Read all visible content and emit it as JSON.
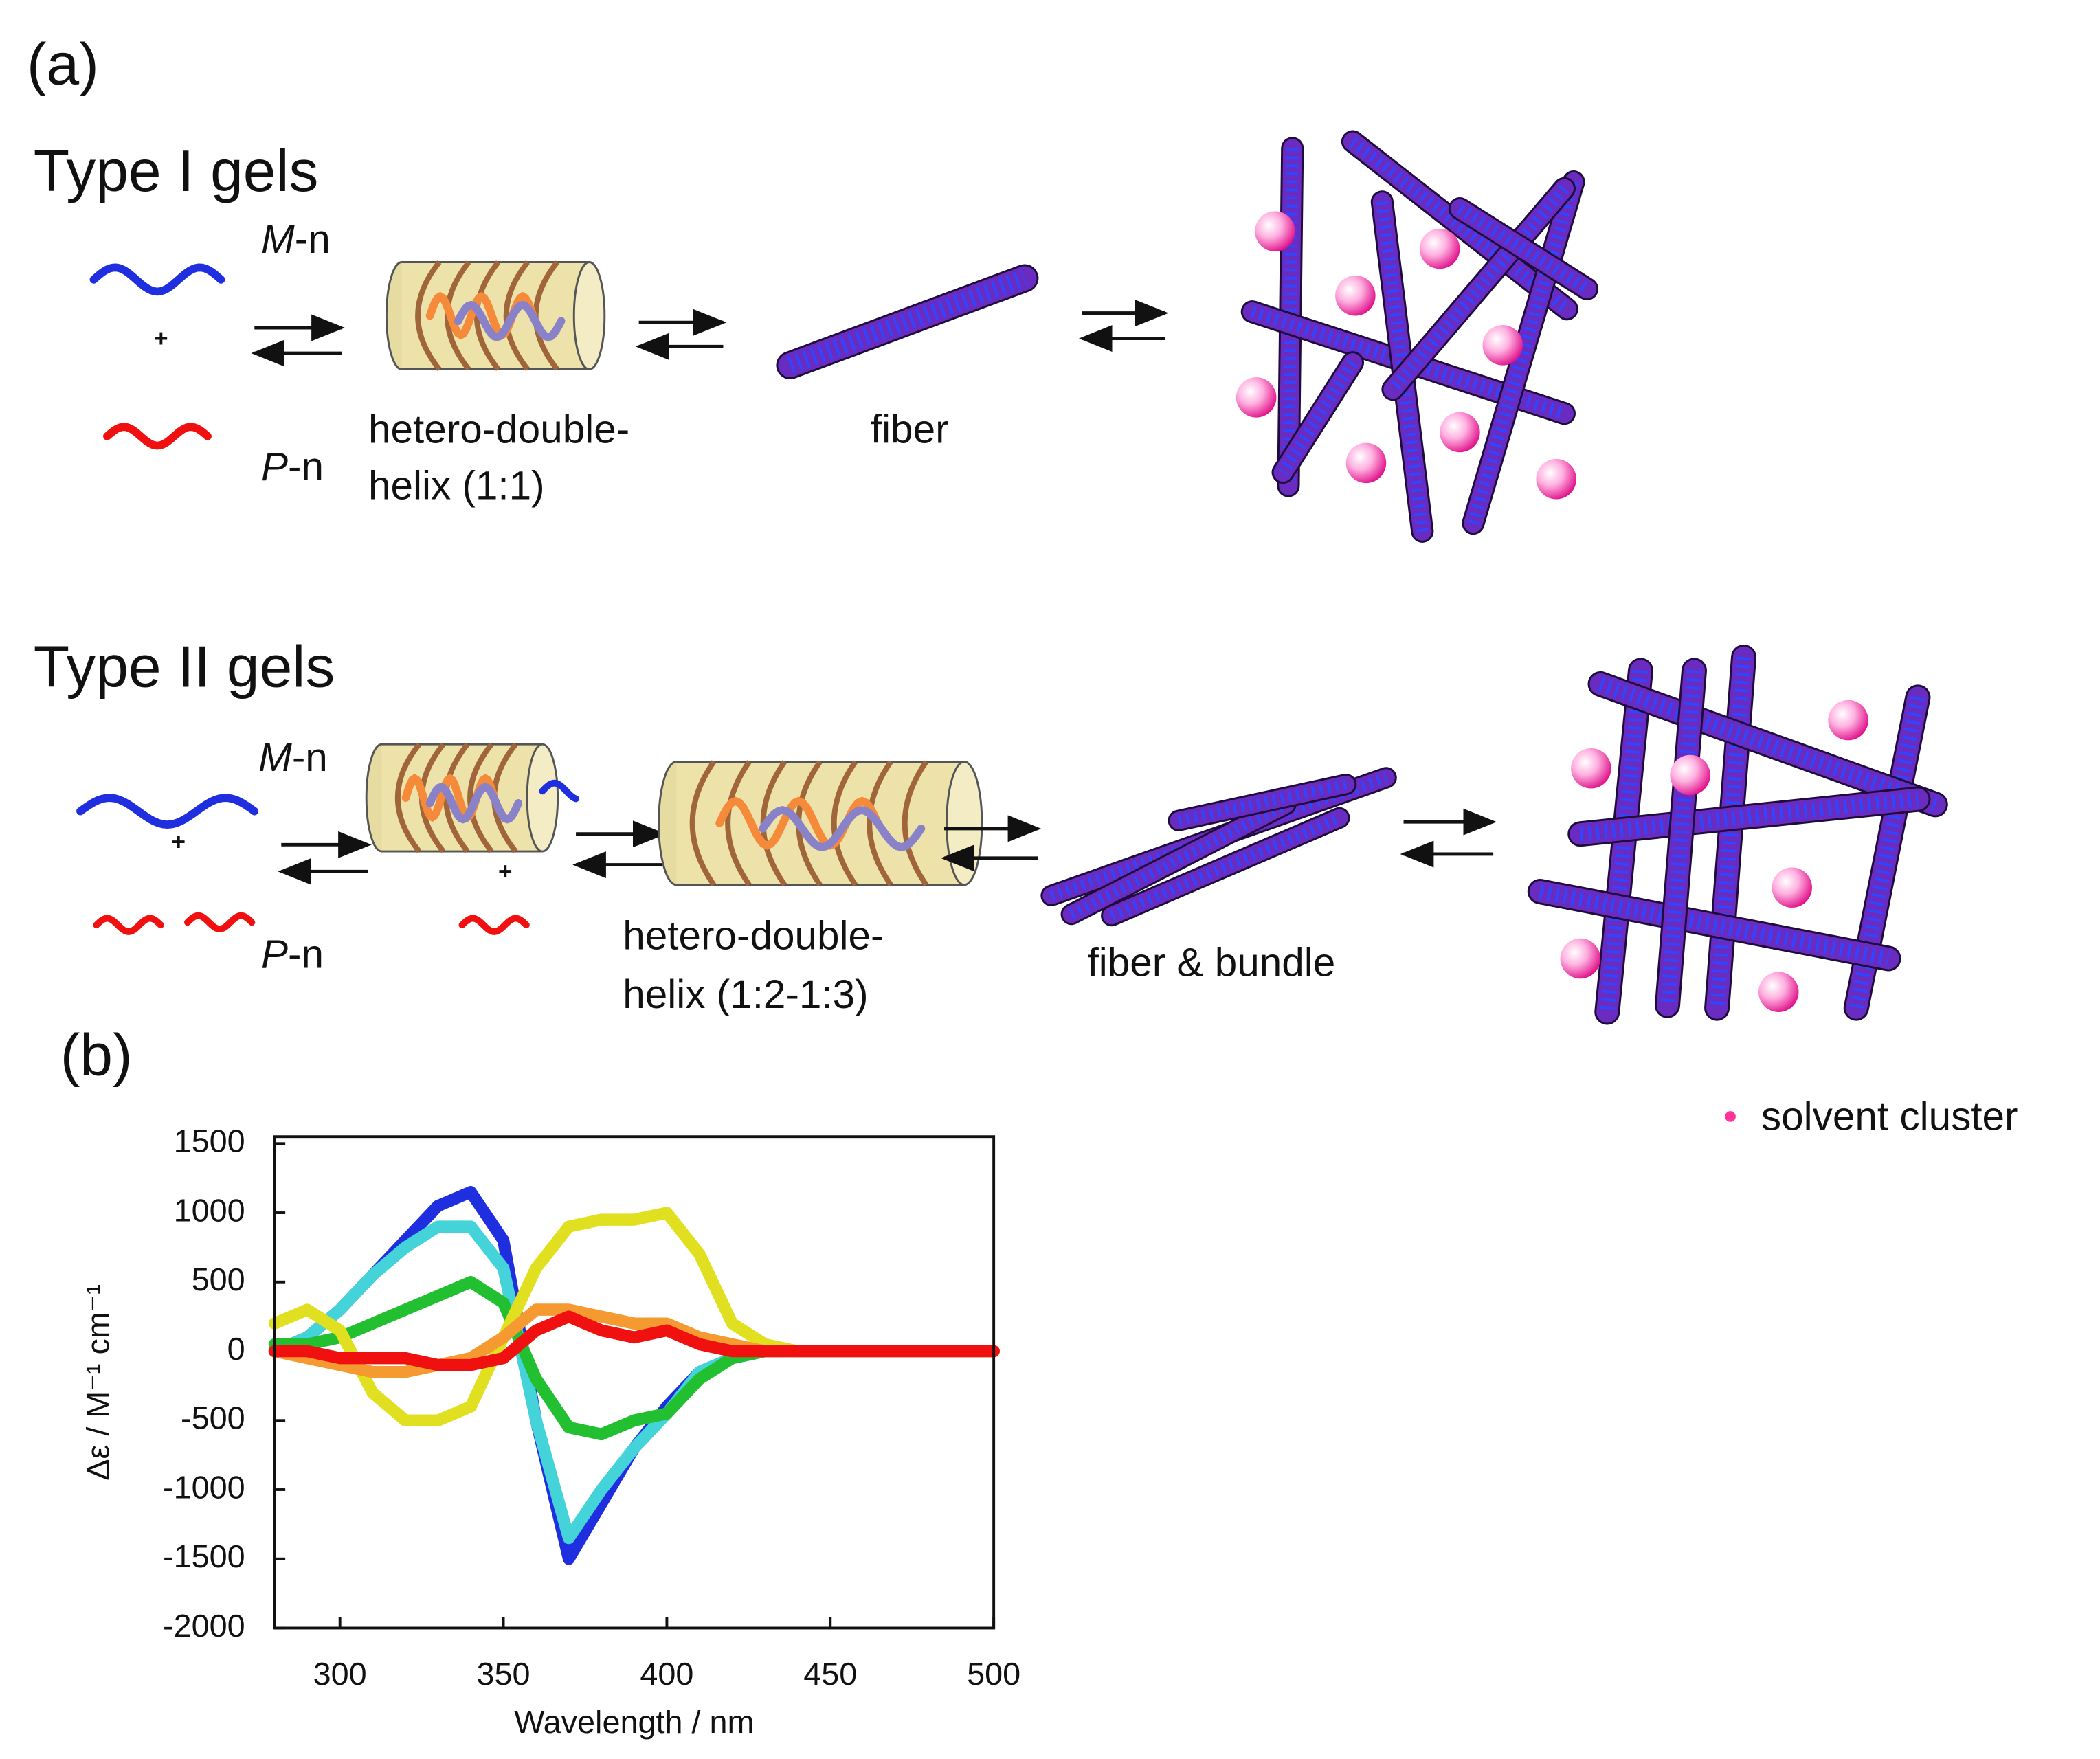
{
  "panel_a": {
    "label": "(a)",
    "type1": {
      "title": "Type I gels",
      "m": {
        "italic": "M",
        "rest": "-n"
      },
      "plus": "+",
      "p": {
        "italic": "P",
        "rest": "-n"
      },
      "helix": [
        "hetero-double-",
        "helix (1:1)"
      ],
      "fiber": "fiber"
    },
    "type2": {
      "title": "Type II gels",
      "m": {
        "italic": "M",
        "rest": "-n"
      },
      "plus": "+",
      "p": {
        "italic": "P",
        "rest": "-n"
      },
      "plus2": "+",
      "helix": [
        "hetero-double-",
        "helix (1:2-1:3)"
      ],
      "fiber": "fiber & bundle"
    },
    "legend": "solvent cluster"
  },
  "panel_b": {
    "label": "(b)"
  },
  "chart_data": {
    "type": "line",
    "x_label": "Wavelength / nm",
    "y_label": "Δε / M⁻¹ cm⁻¹",
    "x": [
      280,
      290,
      300,
      310,
      320,
      330,
      340,
      350,
      360,
      370,
      380,
      390,
      400,
      410,
      420,
      430,
      440,
      450,
      460,
      480,
      500
    ],
    "series": [
      {
        "color": "#1f2fe0",
        "values": [
          0,
          100,
          300,
          550,
          800,
          1050,
          1150,
          800,
          -500,
          -1500,
          -1100,
          -700,
          -400,
          -150,
          -50,
          0,
          0,
          0,
          0,
          0,
          0
        ]
      },
      {
        "color": "#45d3da",
        "values": [
          0,
          100,
          300,
          550,
          750,
          900,
          900,
          600,
          -500,
          -1350,
          -1000,
          -700,
          -450,
          -150,
          -50,
          0,
          0,
          0,
          0,
          0,
          0
        ]
      },
      {
        "color": "#22c030",
        "values": [
          50,
          50,
          100,
          200,
          300,
          400,
          500,
          350,
          -200,
          -550,
          -600,
          -500,
          -450,
          -200,
          -50,
          0,
          0,
          0,
          0,
          0,
          0
        ]
      },
      {
        "color": "#e0e020",
        "values": [
          200,
          300,
          150,
          -300,
          -500,
          -500,
          -400,
          100,
          600,
          900,
          950,
          950,
          1000,
          700,
          200,
          50,
          0,
          0,
          0,
          0,
          0
        ]
      },
      {
        "color": "#f59a30",
        "values": [
          0,
          -50,
          -100,
          -150,
          -150,
          -100,
          -50,
          100,
          300,
          300,
          250,
          200,
          200,
          100,
          50,
          0,
          0,
          0,
          0,
          0,
          0
        ]
      },
      {
        "color": "#f01010",
        "values": [
          0,
          0,
          -50,
          -50,
          -50,
          -100,
          -100,
          -50,
          150,
          250,
          150,
          100,
          150,
          50,
          0,
          0,
          0,
          0,
          0,
          0,
          0
        ]
      }
    ],
    "xlim": [
      280,
      500
    ],
    "ylim": [
      -2000,
      1550
    ],
    "xticks": [
      300,
      350,
      400,
      450,
      500
    ],
    "yticks": [
      -2000,
      -1500,
      -1000,
      -500,
      0,
      500,
      1000,
      1500
    ]
  }
}
